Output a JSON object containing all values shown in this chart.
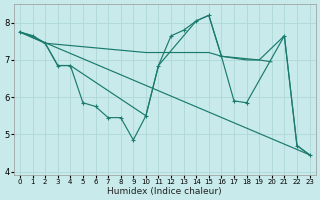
{
  "xlabel": "Humidex (Indice chaleur)",
  "bg_color": "#c8eaea",
  "grid_color": "#b0d8d8",
  "line_color": "#1a7a6e",
  "xlim": [
    -0.5,
    23.5
  ],
  "ylim": [
    3.9,
    8.5
  ],
  "yticks": [
    4,
    5,
    6,
    7,
    8
  ],
  "xticks": [
    0,
    1,
    2,
    3,
    4,
    5,
    6,
    7,
    8,
    9,
    10,
    11,
    12,
    13,
    14,
    15,
    16,
    17,
    18,
    19,
    20,
    21,
    22,
    23
  ],
  "line1_zigzag": {
    "x": [
      0,
      1,
      2,
      3,
      4,
      5,
      6,
      7,
      8,
      9,
      10,
      11,
      12,
      13,
      14,
      15,
      16,
      17,
      18,
      21,
      22,
      23
    ],
    "y": [
      7.75,
      7.65,
      7.45,
      6.85,
      6.85,
      5.85,
      5.75,
      5.45,
      5.45,
      4.85,
      5.5,
      6.85,
      7.65,
      7.8,
      8.05,
      8.2,
      7.1,
      5.9,
      5.85,
      7.65,
      4.7,
      4.45
    ]
  },
  "line2_envelope": {
    "x": [
      0,
      2,
      3,
      4,
      10,
      11,
      14,
      15,
      16,
      19,
      21,
      22,
      23
    ],
    "y": [
      7.75,
      7.45,
      6.85,
      6.85,
      5.5,
      6.85,
      8.05,
      8.2,
      7.1,
      7.0,
      7.65,
      4.7,
      4.45
    ]
  },
  "line3_flat": {
    "x": [
      0,
      1,
      2,
      10,
      11,
      12,
      13,
      14,
      15,
      16,
      17,
      18,
      19,
      20
    ],
    "y": [
      7.75,
      7.65,
      7.45,
      7.2,
      7.2,
      7.2,
      7.2,
      7.2,
      7.2,
      7.1,
      7.05,
      7.0,
      7.0,
      6.95
    ]
  },
  "line4_diagonal": {
    "x": [
      0,
      23
    ],
    "y": [
      7.75,
      4.45
    ]
  }
}
